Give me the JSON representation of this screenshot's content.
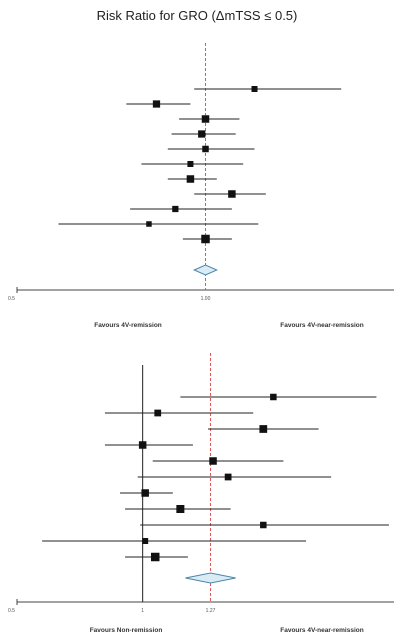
{
  "title": "Risk Ratio for GRO (ΔmTSS ≤ 0.5)",
  "chart_data": [
    {
      "type": "forest",
      "title": "Risk Ratio for GRO (ΔmTSS ≤ 0.5)",
      "x_ticks": [
        "0.5",
        "1.00"
      ],
      "favours_left": "Favours 4V-remission",
      "favours_right": "Favours 4V-near-remission",
      "pooled_estimate": 1.0,
      "studies": [
        {
          "est": 1.13,
          "lo": 0.97,
          "hi": 1.36,
          "weight": 0.6
        },
        {
          "est": 0.87,
          "lo": 0.79,
          "hi": 0.96,
          "weight": 0.85
        },
        {
          "est": 1.0,
          "lo": 0.93,
          "hi": 1.09,
          "weight": 0.9
        },
        {
          "est": 0.99,
          "lo": 0.91,
          "hi": 1.08,
          "weight": 0.85
        },
        {
          "est": 1.0,
          "lo": 0.9,
          "hi": 1.13,
          "weight": 0.7
        },
        {
          "est": 0.96,
          "lo": 0.83,
          "hi": 1.1,
          "weight": 0.6
        },
        {
          "est": 0.96,
          "lo": 0.9,
          "hi": 1.03,
          "weight": 0.9
        },
        {
          "est": 1.07,
          "lo": 0.97,
          "hi": 1.16,
          "weight": 0.9
        },
        {
          "est": 0.92,
          "lo": 0.8,
          "hi": 1.07,
          "weight": 0.65
        },
        {
          "est": 0.85,
          "lo": 0.61,
          "hi": 1.14,
          "weight": 0.5
        },
        {
          "est": 1.0,
          "lo": 0.94,
          "hi": 1.07,
          "weight": 1.1
        }
      ],
      "summary": {
        "est": 1.0,
        "lo": 0.97,
        "hi": 1.03
      }
    },
    {
      "type": "forest",
      "x_ticks": [
        "0.5",
        "1",
        "1.27"
      ],
      "favours_left": "Favours Non-remission",
      "favours_right": "Favours 4V-near-remission",
      "pooled_estimate": 1.27,
      "studies": [
        {
          "est": 1.52,
          "lo": 1.15,
          "hi": 1.93,
          "weight": 0.7
        },
        {
          "est": 1.06,
          "lo": 0.85,
          "hi": 1.44,
          "weight": 0.75
        },
        {
          "est": 1.48,
          "lo": 1.26,
          "hi": 1.7,
          "weight": 0.95
        },
        {
          "est": 1.0,
          "lo": 0.85,
          "hi": 1.2,
          "weight": 0.9
        },
        {
          "est": 1.28,
          "lo": 1.04,
          "hi": 1.56,
          "weight": 0.9
        },
        {
          "est": 1.34,
          "lo": 0.98,
          "hi": 1.75,
          "weight": 0.75
        },
        {
          "est": 1.01,
          "lo": 0.91,
          "hi": 1.12,
          "weight": 0.9
        },
        {
          "est": 1.15,
          "lo": 0.93,
          "hi": 1.35,
          "weight": 1.0
        },
        {
          "est": 1.48,
          "lo": 0.99,
          "hi": 1.98,
          "weight": 0.7
        },
        {
          "est": 1.01,
          "lo": 0.6,
          "hi": 1.65,
          "weight": 0.6
        },
        {
          "est": 1.05,
          "lo": 0.93,
          "hi": 1.18,
          "weight": 1.1
        }
      ],
      "summary": {
        "est": 1.27,
        "lo": 1.17,
        "hi": 1.37
      }
    }
  ]
}
